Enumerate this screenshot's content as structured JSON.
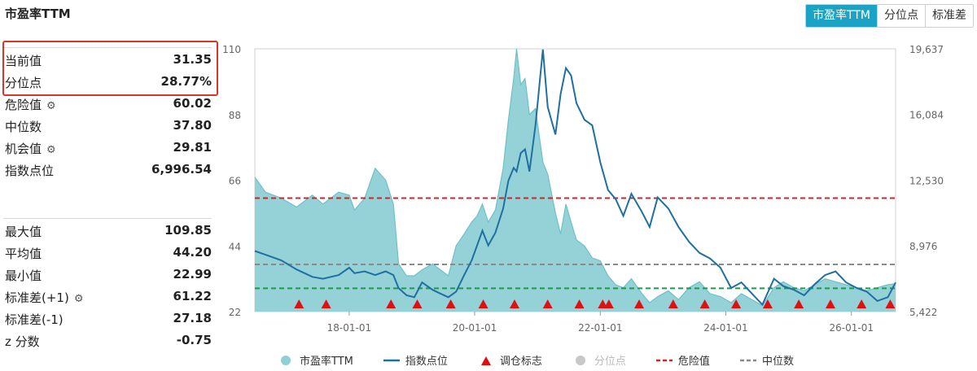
{
  "header": {
    "title": "市盈率TTM"
  },
  "tabs": [
    {
      "label": "市盈率TTM",
      "active": true
    },
    {
      "label": "分位点",
      "active": false
    },
    {
      "label": "标准差",
      "active": false
    }
  ],
  "stats_top": [
    {
      "label": "当前值",
      "value": "31.35",
      "gear": false
    },
    {
      "label": "分位点",
      "value": "28.77%",
      "gear": false
    },
    {
      "label": "危险值",
      "value": "60.02",
      "gear": true
    },
    {
      "label": "中位数",
      "value": "37.80",
      "gear": false
    },
    {
      "label": "机会值",
      "value": "29.81",
      "gear": true
    },
    {
      "label": "指数点位",
      "value": "6,996.54",
      "gear": false
    }
  ],
  "stats_bottom": [
    {
      "label": "最大值",
      "value": "109.85",
      "gear": false
    },
    {
      "label": "平均值",
      "value": "44.20",
      "gear": false
    },
    {
      "label": "最小值",
      "value": "22.99",
      "gear": false
    },
    {
      "label": "标准差(+1)",
      "value": "61.22",
      "gear": true
    },
    {
      "label": "标准差(-1)",
      "value": "27.18",
      "gear": false
    },
    {
      "label": "z 分数",
      "value": "-0.75",
      "gear": false
    }
  ],
  "colors": {
    "pe_fill": "#8fd0d6",
    "pe_line": "#6cc0c9",
    "index_line": "#1f6fa0",
    "danger": "#c8282d",
    "median": "#8a8a8a",
    "opportunity": "#1a9a4a",
    "marker": "#e01010",
    "percentile": "#c8c8c8",
    "accent": "#1aa3c4"
  },
  "legend": [
    {
      "label": "市盈率TTM",
      "kind": "circle",
      "color": "#8fd0d6"
    },
    {
      "label": "指数点位",
      "kind": "line",
      "color": "#1f6fa0"
    },
    {
      "label": "调仓标志",
      "kind": "triangle",
      "color": "#e01010"
    },
    {
      "label": "分位点",
      "kind": "circle",
      "color": "#c8c8c8",
      "muted": true
    },
    {
      "label": "危险值",
      "kind": "dash",
      "color": "#c8282d"
    },
    {
      "label": "中位数",
      "kind": "dash",
      "color": "#8a8a8a"
    }
  ],
  "chart_data": {
    "type": "area",
    "x_range": [
      "2016-07-01",
      "2026-09-15"
    ],
    "x_ticks": [
      "18-01-01",
      "20-01-01",
      "22-01-01",
      "24-01-01",
      "26-01-01"
    ],
    "y_left": {
      "range": [
        22,
        110
      ],
      "ticks": [
        "22",
        "44",
        "66",
        "88",
        "110"
      ]
    },
    "y_right": {
      "range": [
        5422,
        19637
      ],
      "ticks": [
        "5,422",
        "8,976",
        "12,530",
        "16,084",
        "19,637"
      ]
    },
    "reference_lines": {
      "danger": 60.02,
      "median": 37.8,
      "opportunity": 29.81
    },
    "series": [
      {
        "name": "市盈率TTM",
        "axis": "left",
        "points": [
          [
            "2016-07-01",
            67
          ],
          [
            "2016-09-01",
            62
          ],
          [
            "2016-12-01",
            60
          ],
          [
            "2017-03-01",
            57
          ],
          [
            "2017-06-01",
            61
          ],
          [
            "2017-08-01",
            58
          ],
          [
            "2017-11-01",
            62
          ],
          [
            "2018-01-01",
            61
          ],
          [
            "2018-02-01",
            56
          ],
          [
            "2018-04-01",
            60
          ],
          [
            "2018-06-01",
            70
          ],
          [
            "2018-08-01",
            66
          ],
          [
            "2018-09-15",
            58
          ],
          [
            "2018-10-15",
            38
          ],
          [
            "2018-12-01",
            34
          ],
          [
            "2019-01-15",
            34
          ],
          [
            "2019-03-01",
            36
          ],
          [
            "2019-05-01",
            38
          ],
          [
            "2019-06-15",
            36
          ],
          [
            "2019-08-01",
            34
          ],
          [
            "2019-09-15",
            44
          ],
          [
            "2019-11-01",
            48
          ],
          [
            "2019-12-15",
            52
          ],
          [
            "2020-01-15",
            54
          ],
          [
            "2020-02-15",
            58
          ],
          [
            "2020-03-20",
            52
          ],
          [
            "2020-05-01",
            56
          ],
          [
            "2020-06-15",
            70
          ],
          [
            "2020-07-15",
            86
          ],
          [
            "2020-08-15",
            100
          ],
          [
            "2020-09-01",
            110
          ],
          [
            "2020-09-25",
            98
          ],
          [
            "2020-10-20",
            100
          ],
          [
            "2020-11-15",
            88
          ],
          [
            "2020-12-20",
            90
          ],
          [
            "2021-02-01",
            72
          ],
          [
            "2021-03-01",
            68
          ],
          [
            "2021-04-15",
            55
          ],
          [
            "2021-05-15",
            48
          ],
          [
            "2021-06-15",
            58
          ],
          [
            "2021-07-15",
            52
          ],
          [
            "2021-08-15",
            46
          ],
          [
            "2021-10-01",
            44
          ],
          [
            "2021-11-15",
            40
          ],
          [
            "2022-01-01",
            39
          ],
          [
            "2022-02-15",
            34
          ],
          [
            "2022-04-01",
            31
          ],
          [
            "2022-05-15",
            30
          ],
          [
            "2022-07-01",
            33
          ],
          [
            "2022-09-01",
            28
          ],
          [
            "2022-10-15",
            25
          ],
          [
            "2022-12-01",
            27
          ],
          [
            "2023-02-01",
            29
          ],
          [
            "2023-04-01",
            26
          ],
          [
            "2023-06-01",
            30
          ],
          [
            "2023-08-01",
            32
          ],
          [
            "2023-10-01",
            28
          ],
          [
            "2023-12-01",
            27
          ],
          [
            "2024-02-01",
            25
          ],
          [
            "2024-04-01",
            28
          ],
          [
            "2024-06-01",
            26
          ],
          [
            "2024-08-01",
            24
          ],
          [
            "2024-10-08",
            30
          ],
          [
            "2024-12-01",
            32
          ],
          [
            "2025-02-01",
            30
          ],
          [
            "2025-04-01",
            29
          ],
          [
            "2025-06-01",
            31
          ],
          [
            "2025-08-01",
            33
          ],
          [
            "2025-10-01",
            32
          ],
          [
            "2025-12-01",
            31
          ],
          [
            "2026-02-01",
            30
          ],
          [
            "2026-04-01",
            29
          ],
          [
            "2026-06-01",
            30
          ],
          [
            "2026-08-01",
            31
          ],
          [
            "2026-09-15",
            31.35
          ]
        ]
      },
      {
        "name": "指数点位",
        "axis": "right",
        "points": [
          [
            "2016-07-01",
            8700
          ],
          [
            "2016-09-01",
            8500
          ],
          [
            "2016-12-01",
            8200
          ],
          [
            "2017-03-01",
            7700
          ],
          [
            "2017-06-01",
            7300
          ],
          [
            "2017-08-01",
            7200
          ],
          [
            "2017-11-01",
            7400
          ],
          [
            "2018-01-01",
            7800
          ],
          [
            "2018-02-01",
            7500
          ],
          [
            "2018-04-01",
            7600
          ],
          [
            "2018-06-01",
            7400
          ],
          [
            "2018-08-01",
            7600
          ],
          [
            "2018-09-15",
            7400
          ],
          [
            "2018-10-15",
            6700
          ],
          [
            "2018-12-01",
            6300
          ],
          [
            "2019-01-15",
            6200
          ],
          [
            "2019-03-01",
            7000
          ],
          [
            "2019-05-01",
            6600
          ],
          [
            "2019-06-15",
            6400
          ],
          [
            "2019-08-01",
            6200
          ],
          [
            "2019-09-15",
            6500
          ],
          [
            "2019-11-01",
            7400
          ],
          [
            "2019-12-15",
            8200
          ],
          [
            "2020-01-15",
            9000
          ],
          [
            "2020-02-15",
            9800
          ],
          [
            "2020-03-20",
            9000
          ],
          [
            "2020-05-01",
            9700
          ],
          [
            "2020-06-15",
            11000
          ],
          [
            "2020-07-15",
            12500
          ],
          [
            "2020-08-15",
            13200
          ],
          [
            "2020-09-01",
            13000
          ],
          [
            "2020-09-25",
            14000
          ],
          [
            "2020-10-20",
            14200
          ],
          [
            "2020-11-15",
            13000
          ],
          [
            "2020-12-20",
            15500
          ],
          [
            "2021-02-01",
            19600
          ],
          [
            "2021-03-01",
            16500
          ],
          [
            "2021-04-15",
            15000
          ],
          [
            "2021-05-15",
            17200
          ],
          [
            "2021-06-15",
            18600
          ],
          [
            "2021-07-15",
            18200
          ],
          [
            "2021-08-15",
            16700
          ],
          [
            "2021-10-01",
            15800
          ],
          [
            "2021-11-15",
            15500
          ],
          [
            "2022-01-01",
            13500
          ],
          [
            "2022-02-15",
            12000
          ],
          [
            "2022-04-01",
            11500
          ],
          [
            "2022-05-15",
            10600
          ],
          [
            "2022-07-01",
            11800
          ],
          [
            "2022-09-01",
            10800
          ],
          [
            "2022-10-15",
            10000
          ],
          [
            "2022-12-01",
            11600
          ],
          [
            "2023-02-01",
            11000
          ],
          [
            "2023-04-01",
            10000
          ],
          [
            "2023-06-01",
            9200
          ],
          [
            "2023-08-01",
            8600
          ],
          [
            "2023-10-01",
            8300
          ],
          [
            "2023-12-01",
            7800
          ],
          [
            "2024-02-01",
            6700
          ],
          [
            "2024-04-01",
            7000
          ],
          [
            "2024-06-01",
            6400
          ],
          [
            "2024-08-01",
            5800
          ],
          [
            "2024-10-08",
            7200
          ],
          [
            "2024-12-01",
            6800
          ],
          [
            "2025-02-01",
            6600
          ],
          [
            "2025-04-01",
            6300
          ],
          [
            "2025-06-01",
            6900
          ],
          [
            "2025-08-01",
            7400
          ],
          [
            "2025-10-01",
            7600
          ],
          [
            "2025-12-01",
            7000
          ],
          [
            "2026-02-01",
            6700
          ],
          [
            "2026-04-01",
            6500
          ],
          [
            "2026-06-01",
            6000
          ],
          [
            "2026-08-01",
            6200
          ],
          [
            "2026-09-15",
            6996.54
          ]
        ]
      }
    ],
    "rebalance_markers": [
      "2017-03-15",
      "2017-08-20",
      "2018-09-01",
      "2019-02-01",
      "2019-08-15",
      "2020-02-20",
      "2020-08-20",
      "2021-03-01",
      "2021-09-01",
      "2022-01-15",
      "2022-02-20",
      "2022-08-15",
      "2023-03-01",
      "2023-09-01",
      "2024-03-01",
      "2024-09-01",
      "2025-03-01",
      "2025-09-01",
      "2026-03-01",
      "2026-08-15"
    ]
  }
}
